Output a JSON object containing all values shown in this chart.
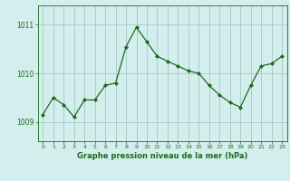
{
  "x": [
    0,
    1,
    2,
    3,
    4,
    5,
    6,
    7,
    8,
    9,
    10,
    11,
    12,
    13,
    14,
    15,
    16,
    17,
    18,
    19,
    20,
    21,
    22,
    23
  ],
  "y": [
    1009.15,
    1009.5,
    1009.35,
    1009.1,
    1009.45,
    1009.45,
    1009.75,
    1009.8,
    1010.55,
    1010.95,
    1010.65,
    1010.35,
    1010.25,
    1010.15,
    1010.05,
    1010.0,
    1009.75,
    1009.55,
    1009.4,
    1009.3,
    1009.75,
    1010.15,
    1010.2,
    1010.35
  ],
  "line_color": "#1a6b1a",
  "marker_color": "#1a6b1a",
  "bg_color": "#d4eeee",
  "grid_color": "#aacccc",
  "axis_color": "#1a6b1a",
  "title": "Graphe pression niveau de la mer (hPa)",
  "yticks": [
    1009,
    1010,
    1011
  ],
  "ylim": [
    1008.6,
    1011.4
  ],
  "xlim": [
    -0.5,
    23.5
  ]
}
